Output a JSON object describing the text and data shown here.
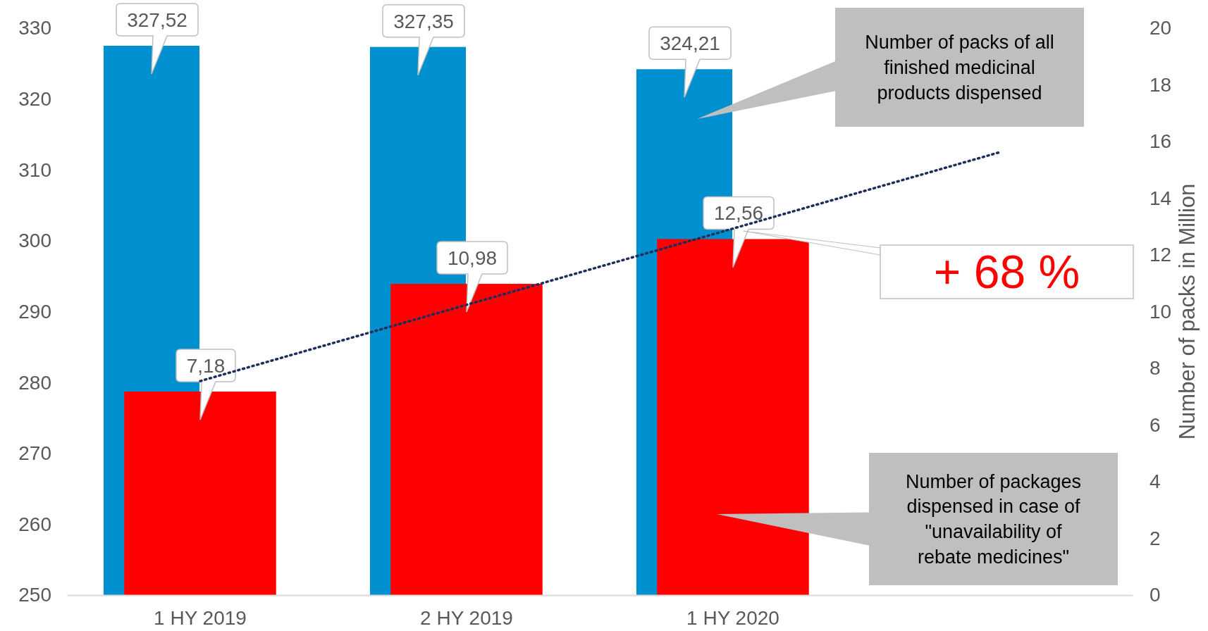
{
  "chart_data": {
    "type": "bar",
    "categories": [
      "1 HY 2019",
      "2 HY 2019",
      "1 HY 2020",
      null
    ],
    "series": [
      {
        "color": "#0090d0",
        "values": [
          327.52,
          327.35,
          324.21,
          null
        ],
        "value_labels": [
          "327,52",
          "327,35",
          "324,21",
          null
        ]
      },
      {
        "color": "#ff0000",
        "axis": "y2",
        "values": [
          7.18,
          10.98,
          12.56,
          null
        ],
        "value_labels": [
          "7,18",
          "10,98",
          "12,56",
          null
        ]
      },
      {
        "type": "line",
        "color": "#1f2d5a",
        "axis": "y2",
        "line_style": "dotted",
        "marker": "none",
        "values": [
          7.55,
          10.24,
          12.93,
          15.62
        ]
      }
    ],
    "ylim": [
      250,
      330
    ],
    "yticks": [
      250,
      260,
      270,
      280,
      290,
      300,
      310,
      320,
      330
    ],
    "y2lim": [
      0,
      20
    ],
    "y2ticks": [
      0,
      2,
      4,
      6,
      8,
      10,
      12,
      14,
      16,
      18,
      20
    ],
    "y2label": "Number of packs in Million",
    "annotations": [
      "Number of packs of all finished medicinal products dispensed",
      "Number of packages dispensed in case of \"unavailability of rebate medicines\"",
      "+ 68 %"
    ],
    "grid": false
  }
}
